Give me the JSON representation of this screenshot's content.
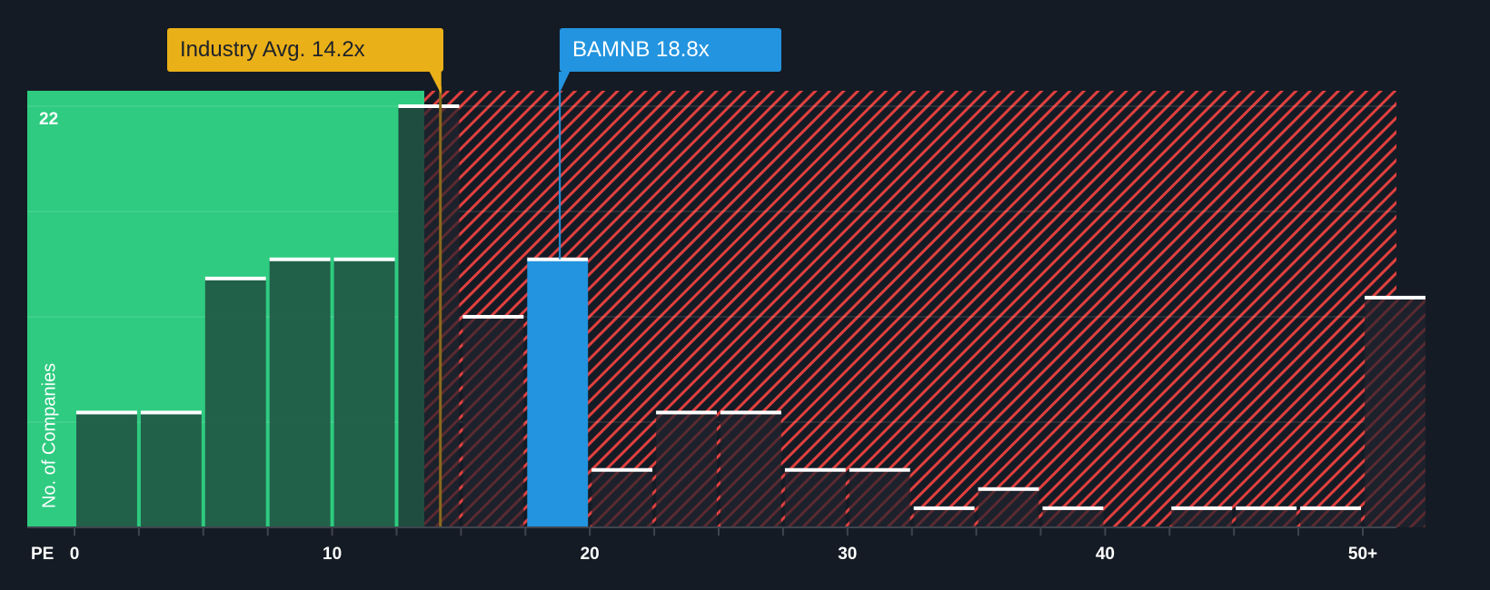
{
  "chart_data": {
    "type": "bar",
    "title": "",
    "xlabel": "PE",
    "ylabel": "No. of Companies",
    "ylim": [
      0,
      22
    ],
    "y_ticks_labeled": [
      22
    ],
    "x_tick_labels": [
      "0",
      "10",
      "20",
      "30",
      "40",
      "50+"
    ],
    "bin_width": 2.5,
    "categories": [
      "0-2.5",
      "2.5-5",
      "5-7.5",
      "7.5-10",
      "10-12.5",
      "12.5-15",
      "15-17.5",
      "17.5-20",
      "20-22.5",
      "22.5-25",
      "25-27.5",
      "27.5-30",
      "30-32.5",
      "32.5-35",
      "35-37.5",
      "37.5-40",
      "40-42.5",
      "42.5-45",
      "45-47.5",
      "47.5-50",
      "50+"
    ],
    "values": [
      6,
      6,
      13,
      14,
      14,
      22,
      11,
      14,
      3,
      6,
      6,
      3,
      3,
      1,
      2,
      1,
      0,
      1,
      1,
      1,
      12
    ],
    "highlight_bin_index": 7,
    "grid": true,
    "gridlines_at": [
      5.5,
      11,
      16.5,
      22
    ],
    "annotations": [
      {
        "label": "Industry Avg. 14.2x",
        "x": 14.2,
        "color": "#eab018"
      },
      {
        "label": "BAMNB 18.8x",
        "x": 18.8,
        "color": "#2394df"
      }
    ],
    "regions": [
      {
        "from": 0,
        "to": 13.7,
        "style": "green",
        "color": "#2ecb80"
      },
      {
        "from": 13.7,
        "to": 52.5,
        "style": "red-hatched",
        "color": "#e0403f"
      }
    ]
  },
  "labels": {
    "industry_callout": "Industry Avg. 14.2x",
    "company_callout": "BAMNB 18.8x",
    "y_axis_title": "No. of Companies",
    "y_top_tick": "22",
    "x_axis_name": "PE",
    "x_ticks": [
      {
        "label": "0",
        "value": 0
      },
      {
        "label": "10",
        "value": 10
      },
      {
        "label": "20",
        "value": 20
      },
      {
        "label": "30",
        "value": 30
      },
      {
        "label": "40",
        "value": 40
      },
      {
        "label": "50+",
        "value": 50
      }
    ]
  },
  "colors": {
    "background": "#151b24",
    "green_zone": "#2ecb80",
    "green_bar": "#1f4d40",
    "hatch_red": "#e0403f",
    "company_bar": "#2394df",
    "industry_line": "#eab018",
    "bar_cap": "#ffffff",
    "axis": "#3f454e"
  }
}
